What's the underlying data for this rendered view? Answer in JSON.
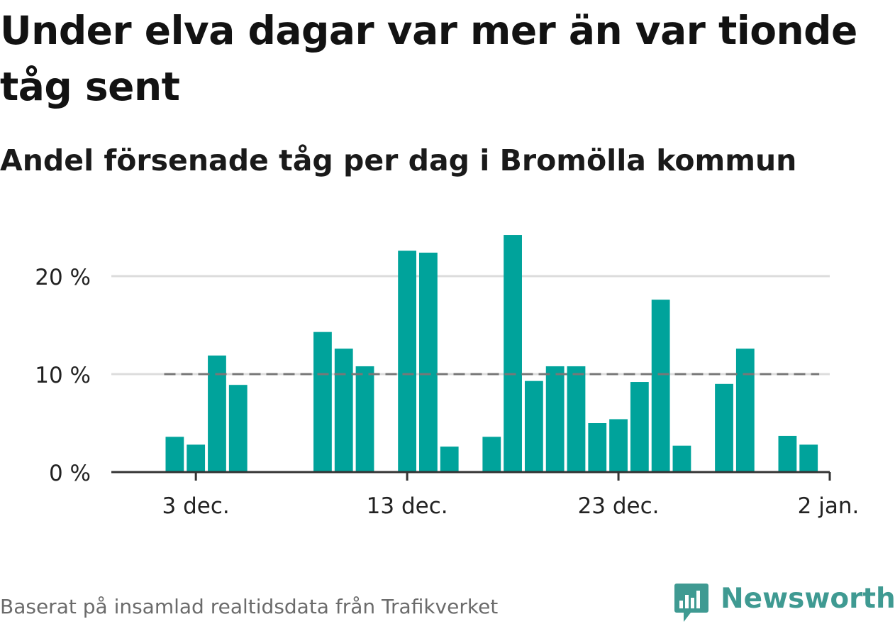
{
  "title": "Under elva dagar var mer än var tionde tåg sent",
  "subtitle": "Andel försenade tåg per dag i Bromölla kommun",
  "footer": "Baserat på insamlad realtidsdata från Trafikverket",
  "brand": {
    "name": "Newsworthy",
    "icon": "newsworthy-chart-bubble-icon",
    "color": "#3f9a92"
  },
  "colors": {
    "bar": "#00a39b",
    "grid": "#dcdcdc",
    "axis": "#333333",
    "reference_line": "#777777",
    "text": "#222222"
  },
  "chart_data": {
    "type": "bar",
    "title": "Under elva dagar var mer än var tionde tåg sent",
    "subtitle": "Andel försenade tåg per dag i Bromölla kommun",
    "xlabel": "",
    "ylabel": "",
    "ylim": [
      0,
      25
    ],
    "y_ticks": [
      0,
      10,
      20
    ],
    "y_tick_labels": [
      "0 %",
      "10 %",
      "20 %"
    ],
    "x_tick_labels": [
      "3 dec.",
      "13 dec.",
      "23 dec.",
      "2 jan."
    ],
    "x_tick_dates": [
      "2023-12-03",
      "2023-12-13",
      "2023-12-23",
      "2024-01-02"
    ],
    "x_range": [
      "2023-11-29",
      "2024-01-02"
    ],
    "grid": true,
    "reference_line": {
      "value": 10,
      "style": "dashed"
    },
    "x": [
      "2023-12-02",
      "2023-12-03",
      "2023-12-04",
      "2023-12-05",
      "2023-12-06",
      "2023-12-07",
      "2023-12-08",
      "2023-12-09",
      "2023-12-10",
      "2023-12-11",
      "2023-12-12",
      "2023-12-13",
      "2023-12-14",
      "2023-12-15",
      "2023-12-16",
      "2023-12-17",
      "2023-12-18",
      "2023-12-19",
      "2023-12-20",
      "2023-12-21",
      "2023-12-22",
      "2023-12-23",
      "2023-12-24",
      "2023-12-25",
      "2023-12-26",
      "2023-12-27",
      "2023-12-28",
      "2023-12-29",
      "2023-12-30",
      "2023-12-31",
      "2024-01-01"
    ],
    "values": [
      3.6,
      2.8,
      11.9,
      8.9,
      null,
      null,
      null,
      14.3,
      12.6,
      10.8,
      null,
      22.6,
      22.4,
      2.6,
      null,
      3.6,
      24.2,
      9.3,
      10.8,
      10.8,
      5.0,
      5.4,
      9.2,
      17.6,
      2.7,
      null,
      9.0,
      12.6,
      null,
      3.7,
      2.8
    ]
  }
}
